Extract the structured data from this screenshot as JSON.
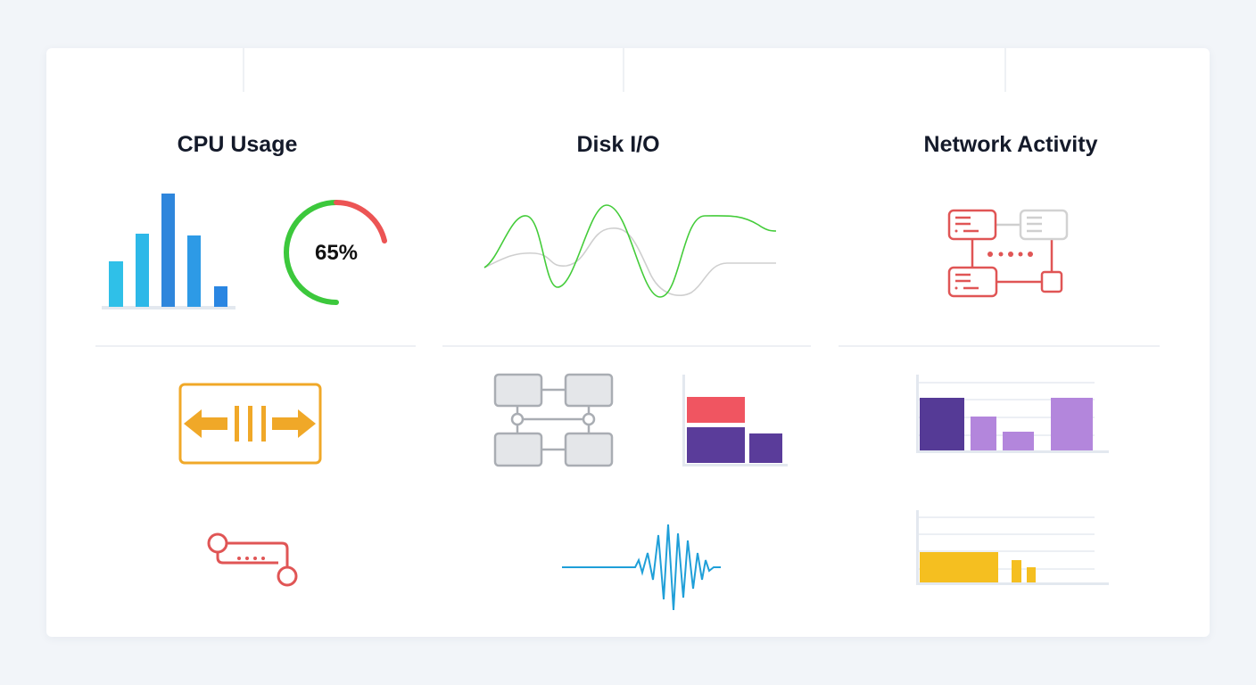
{
  "panels": [
    {
      "title": "CPU Usage",
      "gauge_value": "65%",
      "gauge_fraction": 0.65
    },
    {
      "title": "Disk I/O"
    },
    {
      "title": "Network Activity"
    }
  ],
  "colors": {
    "cpu_bars": "#2a8fe0",
    "gauge_green": "#3cc83c",
    "gauge_red": "#ec5454",
    "disk_wave": "#44cc3a",
    "network_icon": "#e05555",
    "transfer_icon": "#f0a828",
    "purple_dark": "#553a96",
    "purple_light": "#b386dc",
    "yellow": "#f5bf20",
    "seismic": "#1f9fd8"
  },
  "icons": [
    "bar-chart-icon",
    "gauge-icon",
    "wave-chart-icon",
    "network-diagram-icon",
    "transfer-arrows-icon",
    "connector-icon",
    "node-diagram-icon",
    "stacked-bar-icon",
    "seismic-wave-icon",
    "purple-bar-chart-icon",
    "yellow-bar-chart-icon"
  ]
}
